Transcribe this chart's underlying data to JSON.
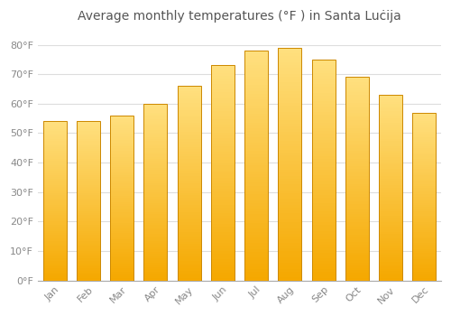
{
  "title": "Average monthly temperatures (°F ) in Santa Luċija",
  "months": [
    "Jan",
    "Feb",
    "Mar",
    "Apr",
    "May",
    "Jun",
    "Jul",
    "Aug",
    "Sep",
    "Oct",
    "Nov",
    "Dec"
  ],
  "values": [
    54,
    54,
    56,
    60,
    66,
    73,
    78,
    79,
    75,
    69,
    63,
    57
  ],
  "ylim": [
    0,
    85
  ],
  "yticks": [
    0,
    10,
    20,
    30,
    40,
    50,
    60,
    70,
    80
  ],
  "ytick_labels": [
    "0°F",
    "10°F",
    "20°F",
    "30°F",
    "40°F",
    "50°F",
    "60°F",
    "70°F",
    "80°F"
  ],
  "bg_color": "#FFFFFF",
  "grid_color": "#DDDDDD",
  "title_fontsize": 10,
  "tick_fontsize": 8,
  "bar_color_bottom": "#F5A800",
  "bar_color_top": "#FFE080",
  "bar_edge_color": "#CC8800",
  "bar_width": 0.7,
  "n_gradient_steps": 80
}
